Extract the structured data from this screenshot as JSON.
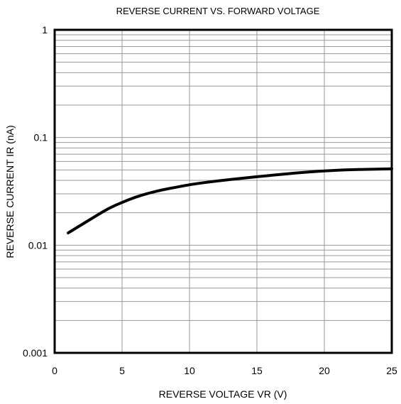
{
  "chart_data": {
    "type": "line",
    "title": "REVERSE CURRENT VS. FORWARD VOLTAGE",
    "xlabel": "REVERSE VOLTAGE VR (V)",
    "ylabel": "REVERSE CURRENT IR (nA)",
    "xlim": [
      0,
      25
    ],
    "ylim": [
      0.001,
      1
    ],
    "yscale": "log",
    "grid": true,
    "x_ticks": [
      0,
      5,
      10,
      15,
      20,
      25
    ],
    "x_tick_labels": [
      "0",
      "5",
      "10",
      "15",
      "20",
      "25"
    ],
    "y_ticks": [
      0.001,
      0.01,
      0.1,
      1
    ],
    "y_tick_labels": [
      "0.001",
      "0.01",
      "0.1",
      "1"
    ],
    "series": [
      {
        "x": [
          1,
          2,
          3,
          4,
          5,
          6,
          7,
          8,
          9,
          10,
          12,
          14,
          16,
          18,
          20,
          22,
          25
        ],
        "y": [
          0.013,
          0.0155,
          0.0185,
          0.022,
          0.025,
          0.028,
          0.0305,
          0.0327,
          0.0345,
          0.0365,
          0.0395,
          0.042,
          0.0445,
          0.047,
          0.049,
          0.0503,
          0.0512
        ]
      }
    ],
    "colors": {
      "line": "#000000",
      "grid": "#999999",
      "frame": "#000000"
    }
  }
}
